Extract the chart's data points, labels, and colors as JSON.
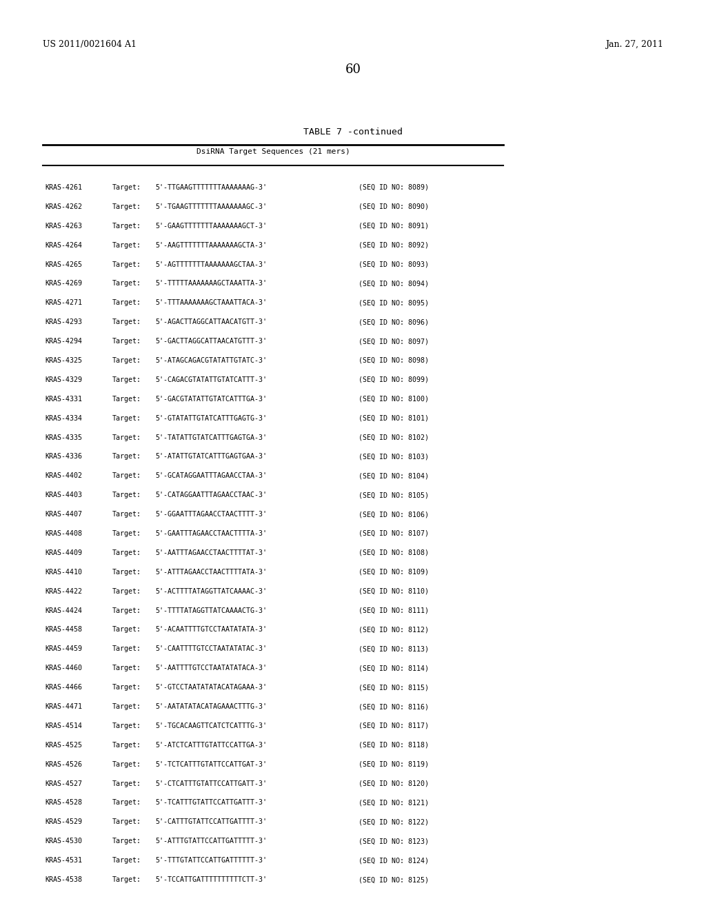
{
  "header_left": "US 2011/0021604 A1",
  "header_right": "Jan. 27, 2011",
  "page_number": "60",
  "table_title": "TABLE 7 -continued",
  "table_subtitle": "DsiRNA Target Sequences (21 mers)",
  "rows": [
    [
      "KRAS-4261",
      "Target:",
      "5'-TTGAAGTTTTTTTAAAAAAAG-3'",
      "(SEQ ID NO: 8089)"
    ],
    [
      "KRAS-4262",
      "Target:",
      "5'-TGAAGTTTTTTTAAAAAAAGC-3'",
      "(SEQ ID NO: 8090)"
    ],
    [
      "KRAS-4263",
      "Target:",
      "5'-GAAGTTTTTTTAAAAAAAGCT-3'",
      "(SEQ ID NO: 8091)"
    ],
    [
      "KRAS-4264",
      "Target:",
      "5'-AAGTTTTTTTAAAAAAAGCTA-3'",
      "(SEQ ID NO: 8092)"
    ],
    [
      "KRAS-4265",
      "Target:",
      "5'-AGTTTTTTTAAAAAAAGCTAA-3'",
      "(SEQ ID NO: 8093)"
    ],
    [
      "KRAS-4269",
      "Target:",
      "5'-TTTTTAAAAAAAGCTAAATTA-3'",
      "(SEQ ID NO: 8094)"
    ],
    [
      "KRAS-4271",
      "Target:",
      "5'-TTTAAAAAAAGCTAAATTACA-3'",
      "(SEQ ID NO: 8095)"
    ],
    [
      "KRAS-4293",
      "Target:",
      "5'-AGACTTAGGCATTAACATGTT-3'",
      "(SEQ ID NO: 8096)"
    ],
    [
      "KRAS-4294",
      "Target:",
      "5'-GACTTAGGCATTAACATGTTT-3'",
      "(SEQ ID NO: 8097)"
    ],
    [
      "KRAS-4325",
      "Target:",
      "5'-ATAGCAGACGTATATTGTATC-3'",
      "(SEQ ID NO: 8098)"
    ],
    [
      "KRAS-4329",
      "Target:",
      "5'-CAGACGTATATTGTATCATTT-3'",
      "(SEQ ID NO: 8099)"
    ],
    [
      "KRAS-4331",
      "Target:",
      "5'-GACGTATATTGTATCATTTGA-3'",
      "(SEQ ID NO: 8100)"
    ],
    [
      "KRAS-4334",
      "Target:",
      "5'-GTATATTGTATCATTTGAGTG-3'",
      "(SEQ ID NO: 8101)"
    ],
    [
      "KRAS-4335",
      "Target:",
      "5'-TATATTGTATCATTTGAGTGA-3'",
      "(SEQ ID NO: 8102)"
    ],
    [
      "KRAS-4336",
      "Target:",
      "5'-ATATTGTATCATTTGAGTGAA-3'",
      "(SEQ ID NO: 8103)"
    ],
    [
      "KRAS-4402",
      "Target:",
      "5'-GCATAGGAATTTAGAACCTAA-3'",
      "(SEQ ID NO: 8104)"
    ],
    [
      "KRAS-4403",
      "Target:",
      "5'-CATAGGAATTTAGAACCTAAC-3'",
      "(SEQ ID NO: 8105)"
    ],
    [
      "KRAS-4407",
      "Target:",
      "5'-GGAATTTAGAACCTAACTTTT-3'",
      "(SEQ ID NO: 8106)"
    ],
    [
      "KRAS-4408",
      "Target:",
      "5'-GAATTTAGAACCTAACTTTTA-3'",
      "(SEQ ID NO: 8107)"
    ],
    [
      "KRAS-4409",
      "Target:",
      "5'-AATTTAGAACCTAACTTTTAT-3'",
      "(SEQ ID NO: 8108)"
    ],
    [
      "KRAS-4410",
      "Target:",
      "5'-ATTTAGAACCTAACTTTTATA-3'",
      "(SEQ ID NO: 8109)"
    ],
    [
      "KRAS-4422",
      "Target:",
      "5'-ACTTTTATAGGTTATCAAAAC-3'",
      "(SEQ ID NO: 8110)"
    ],
    [
      "KRAS-4424",
      "Target:",
      "5'-TTTTATAGGTTATCAAAACTG-3'",
      "(SEQ ID NO: 8111)"
    ],
    [
      "KRAS-4458",
      "Target:",
      "5'-ACAATTTTGTCCTAATATATA-3'",
      "(SEQ ID NO: 8112)"
    ],
    [
      "KRAS-4459",
      "Target:",
      "5'-CAATTTTGTCCTAATATATAC-3'",
      "(SEQ ID NO: 8113)"
    ],
    [
      "KRAS-4460",
      "Target:",
      "5'-AATTTTGTCCTAATATATACA-3'",
      "(SEQ ID NO: 8114)"
    ],
    [
      "KRAS-4466",
      "Target:",
      "5'-GTCCTAATATATAСATAGAAA-3'",
      "(SEQ ID NO: 8115)"
    ],
    [
      "KRAS-4471",
      "Target:",
      "5'-AATATATACATAGAAACTTTG-3'",
      "(SEQ ID NO: 8116)"
    ],
    [
      "KRAS-4514",
      "Target:",
      "5'-TGCACAAGTTCATCTCATTTG-3'",
      "(SEQ ID NO: 8117)"
    ],
    [
      "KRAS-4525",
      "Target:",
      "5'-ATCTCATTTGTATTCCATTGA-3'",
      "(SEQ ID NO: 8118)"
    ],
    [
      "KRAS-4526",
      "Target:",
      "5'-TCTCATTTGTATTCCATTGAT-3'",
      "(SEQ ID NO: 8119)"
    ],
    [
      "KRAS-4527",
      "Target:",
      "5'-CTCATTTGTATTCCATTGATT-3'",
      "(SEQ ID NO: 8120)"
    ],
    [
      "KRAS-4528",
      "Target:",
      "5'-TCATTTGTATTCCATTGATTT-3'",
      "(SEQ ID NO: 8121)"
    ],
    [
      "KRAS-4529",
      "Target:",
      "5'-CATTTGTATTCCATTGATTTT-3'",
      "(SEQ ID NO: 8122)"
    ],
    [
      "KRAS-4530",
      "Target:",
      "5'-ATTTGTATTCCATTGATTTTT-3'",
      "(SEQ ID NO: 8123)"
    ],
    [
      "KRAS-4531",
      "Target:",
      "5'-TTTGTATTCCATTGATTTTTT-3'",
      "(SEQ ID NO: 8124)"
    ],
    [
      "KRAS-4538",
      "Target:",
      "5'-TCCATTGATTTTTTTTTТCTT-3'",
      "(SEQ ID NO: 8125)"
    ]
  ],
  "bg_color": "#ffffff",
  "text_color": "#000000",
  "font_size": 7.2,
  "header_font_size": 9.0,
  "title_font_size": 9.5,
  "subtitle_font_size": 8.0
}
